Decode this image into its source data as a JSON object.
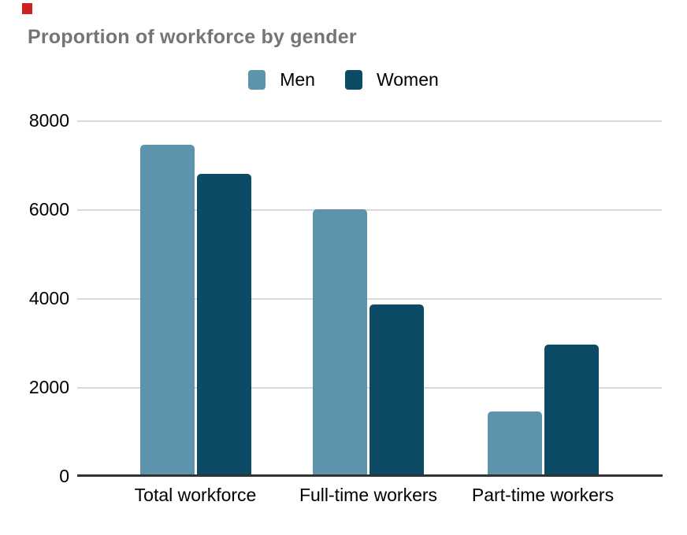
{
  "chart_data": {
    "type": "bar",
    "title": "Proportion of workforce by gender",
    "categories": [
      "Total workforce",
      "Full-time workers",
      "Part-time workers"
    ],
    "series": [
      {
        "name": "Men",
        "color": "#5e93ae",
        "values": [
          7450,
          6000,
          1450
        ]
      },
      {
        "name": "Women",
        "color": "#0c4a66",
        "values": [
          6800,
          3850,
          2950
        ]
      }
    ],
    "xlabel": "",
    "ylabel": "",
    "ylim": [
      0,
      8000
    ],
    "yticks": [
      0,
      2000,
      4000,
      6000,
      8000
    ],
    "grid": true,
    "legend_position": "top-center"
  },
  "colors": {
    "title_text": "#757575",
    "axis_text": "#000000",
    "gridline": "#d9d9d9",
    "axis_line": "#333333",
    "background": "#ffffff",
    "red_marker": "#cc2222"
  }
}
